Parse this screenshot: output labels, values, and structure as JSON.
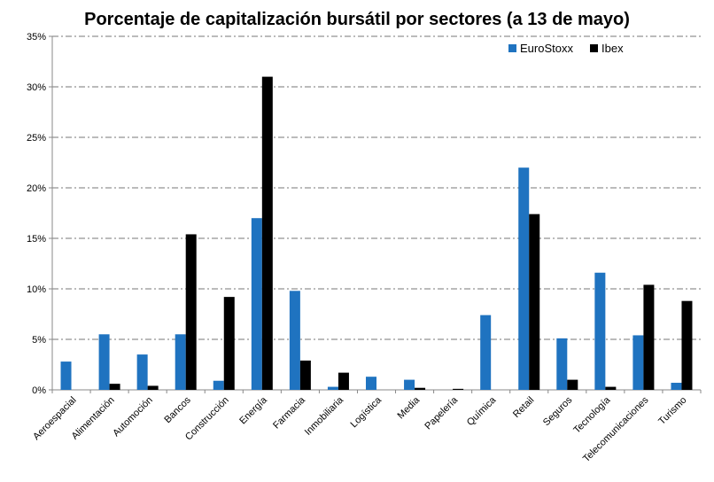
{
  "chart_data": {
    "type": "bar",
    "title": "Porcentaje de capitalización bursátil por sectores (a 13 de mayo)",
    "xlabel": "",
    "ylabel": "",
    "ylim": [
      0,
      35
    ],
    "yticks": [
      "0%",
      "5%",
      "10%",
      "15%",
      "20%",
      "25%",
      "30%",
      "35%"
    ],
    "grid": true,
    "legend_position": "top-right",
    "categories": [
      "Aeroespacial",
      "Alimentación",
      "Automoción",
      "Bancos",
      "Construcción",
      "Energía",
      "Farmacia",
      "Inmobiliaria",
      "Logística",
      "Media",
      "Papelería",
      "Química",
      "Retail",
      "Seguros",
      "Tecnología",
      "Telecomunicaciones",
      "Turismo"
    ],
    "series": [
      {
        "name": "EuroStoxx",
        "color": "#1f73c0",
        "values": [
          2.8,
          5.5,
          3.5,
          5.5,
          0.9,
          17.0,
          9.8,
          0.3,
          1.3,
          1.0,
          0.0,
          7.4,
          22.0,
          5.1,
          11.6,
          5.4,
          0.7
        ]
      },
      {
        "name": "Ibex",
        "color": "#000000",
        "values": [
          0.0,
          0.6,
          0.4,
          15.4,
          9.2,
          31.0,
          2.9,
          1.7,
          0.0,
          0.2,
          0.1,
          0.0,
          17.4,
          1.0,
          0.3,
          10.4,
          8.8
        ]
      }
    ]
  }
}
